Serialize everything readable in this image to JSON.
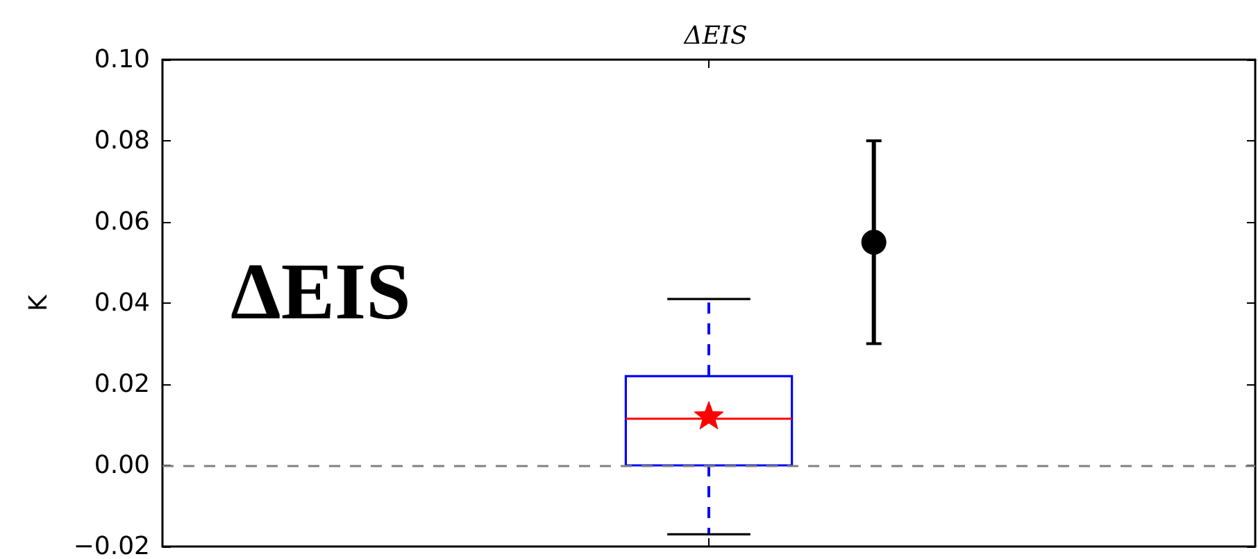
{
  "chart_data": {
    "type": "box",
    "title": "ΔEIS",
    "ylabel": "K",
    "annotations": [
      "ΔEIS"
    ],
    "categories": [
      null
    ],
    "tick_labels": "y",
    "ylim": [
      -0.02,
      0.1
    ],
    "yticks": [
      {
        "value": -0.02,
        "label": "−0.02"
      },
      {
        "value": 0,
        "label": "0.00"
      },
      {
        "value": 0.02,
        "label": "0.02"
      },
      {
        "value": 0.04,
        "label": "0.04"
      },
      {
        "value": 0.06,
        "label": "0.06"
      },
      {
        "value": 0.08,
        "label": "0.08"
      },
      {
        "value": 0.1,
        "label": "0.10"
      }
    ],
    "ref_lines": [
      {
        "axis": "y",
        "value": 0,
        "color": "#808080",
        "line_style": "dashed"
      }
    ],
    "series": [
      {
        "color": "#0000ff",
        "line_style": "dashed",
        "boxes": [
          {
            "low": -0.017,
            "q1": 0,
            "median": 0.0115,
            "q3": 0.022,
            "high": 0.041,
            "mean": 0.012
          }
        ]
      },
      {
        "type": "scatter",
        "color": "#000000",
        "marker": "circle",
        "values": [
          0.055
        ],
        "errors": [
          0.025
        ]
      }
    ]
  }
}
